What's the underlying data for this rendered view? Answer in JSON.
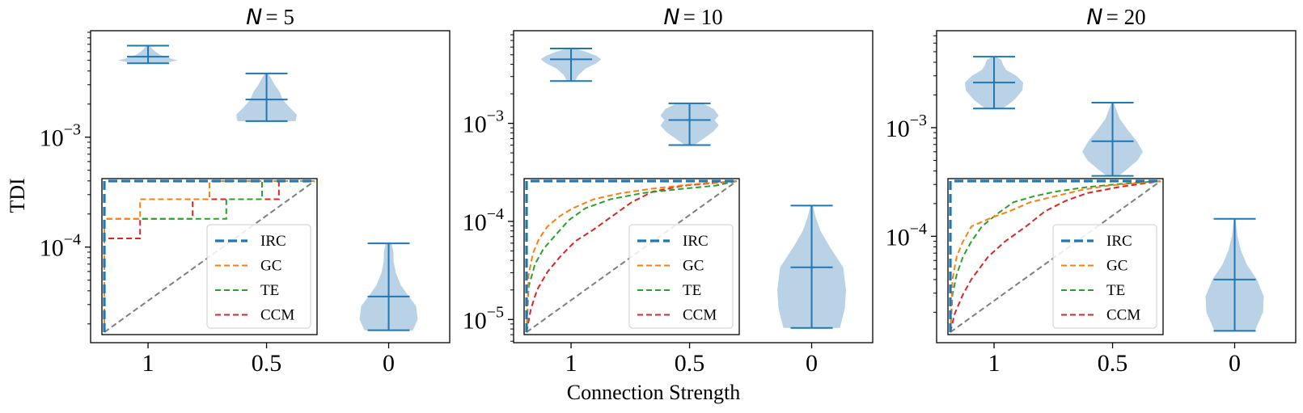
{
  "figure": {
    "xlabel": "Connection Strength",
    "ylabel": "TDI"
  },
  "chart_data": [
    {
      "type": "violin",
      "title_var": "N",
      "title_value": "= 5",
      "categories": [
        "1",
        "0.5",
        "0"
      ],
      "yscale": "log",
      "ylim": [
        1.35e-05,
        0.0093
      ],
      "y_ticks": [
        {
          "value": 0.001,
          "base": "10",
          "exp": "−3"
        },
        {
          "value": 0.0001,
          "base": "10",
          "exp": "−4"
        }
      ],
      "violins": [
        {
          "category": "1",
          "min": 0.0047,
          "max": 0.0068,
          "mean": 0.0054,
          "profile": [
            [
              0.0047,
              0.38
            ],
            [
              0.005,
              0.74
            ],
            [
              0.0052,
              0.56
            ],
            [
              0.0056,
              0.3
            ],
            [
              0.006,
              0.18
            ],
            [
              0.0064,
              0.1
            ],
            [
              0.0068,
              0.04
            ]
          ]
        },
        {
          "category": "0.5",
          "min": 0.0014,
          "max": 0.0038,
          "mean": 0.0022,
          "profile": [
            [
              0.0014,
              0.72
            ],
            [
              0.0016,
              0.75
            ],
            [
              0.0019,
              0.55
            ],
            [
              0.0022,
              0.4
            ],
            [
              0.0026,
              0.32
            ],
            [
              0.003,
              0.2
            ],
            [
              0.0034,
              0.12
            ],
            [
              0.0038,
              0.04
            ]
          ]
        },
        {
          "category": "0",
          "min": 1.75e-05,
          "max": 0.000108,
          "mean": 3.55e-05,
          "profile": [
            [
              1.75e-05,
              0.6
            ],
            [
              2.2e-05,
              0.72
            ],
            [
              2.9e-05,
              0.68
            ],
            [
              3.55e-05,
              0.5
            ],
            [
              4.5e-05,
              0.3
            ],
            [
              5.8e-05,
              0.18
            ],
            [
              7.5e-05,
              0.12
            ],
            [
              9e-05,
              0.12
            ],
            [
              0.000108,
              0.07
            ]
          ]
        }
      ],
      "inset": {
        "type": "roc",
        "legend_position": "lower-right",
        "series": [
          {
            "name": "IRC",
            "color": "#1f77b4",
            "style": "dashed-thick",
            "points": [
              [
                0,
                0
              ],
              [
                0,
                1
              ],
              [
                1,
                1
              ]
            ]
          },
          {
            "name": "GC",
            "color": "#ff7f0e",
            "style": "dashed",
            "points": [
              [
                0,
                0
              ],
              [
                0,
                0.75
              ],
              [
                0.17,
                0.75
              ],
              [
                0.17,
                0.88
              ],
              [
                0.5,
                0.88
              ],
              [
                0.5,
                1
              ],
              [
                1,
                1
              ]
            ]
          },
          {
            "name": "TE",
            "color": "#2ca02c",
            "style": "dashed",
            "points": [
              [
                0,
                0
              ],
              [
                0,
                0.75
              ],
              [
                0.58,
                0.75
              ],
              [
                0.58,
                0.88
              ],
              [
                0.75,
                0.88
              ],
              [
                0.75,
                1
              ],
              [
                1,
                1
              ]
            ]
          },
          {
            "name": "CCM",
            "color": "#d62728",
            "style": "dashed",
            "points": [
              [
                0,
                0
              ],
              [
                0,
                0.62
              ],
              [
                0.17,
                0.62
              ],
              [
                0.17,
                0.75
              ],
              [
                0.42,
                0.75
              ],
              [
                0.42,
                0.88
              ],
              [
                0.83,
                0.88
              ],
              [
                0.83,
                1
              ],
              [
                1,
                1
              ]
            ]
          },
          {
            "name": "",
            "color": "#7f7f7f",
            "style": "dashed-diagonal",
            "points": [
              [
                0,
                0
              ],
              [
                1,
                1
              ]
            ]
          }
        ]
      }
    },
    {
      "type": "violin",
      "title_var": "N",
      "title_value": "= 10",
      "categories": [
        "1",
        "0.5",
        "0"
      ],
      "yscale": "log",
      "ylim": [
        5.8e-06,
        0.0088
      ],
      "y_ticks": [
        {
          "value": 0.001,
          "base": "10",
          "exp": "−3"
        },
        {
          "value": 0.0001,
          "base": "10",
          "exp": "−4"
        },
        {
          "value": 1e-05,
          "base": "10",
          "exp": "−5"
        }
      ],
      "violins": [
        {
          "category": "1",
          "min": 0.0027,
          "max": 0.0058,
          "mean": 0.0045,
          "profile": [
            [
              0.0027,
              0.1
            ],
            [
              0.0031,
              0.18
            ],
            [
              0.0036,
              0.35
            ],
            [
              0.0041,
              0.62
            ],
            [
              0.0045,
              0.75
            ],
            [
              0.0049,
              0.62
            ],
            [
              0.0054,
              0.35
            ],
            [
              0.0058,
              0.1
            ]
          ]
        },
        {
          "category": "0.5",
          "min": 0.0006,
          "max": 0.0016,
          "mean": 0.00108,
          "profile": [
            [
              0.0006,
              0.12
            ],
            [
              0.0007,
              0.35
            ],
            [
              0.00082,
              0.58
            ],
            [
              0.00095,
              0.72
            ],
            [
              0.00108,
              0.62
            ],
            [
              0.0012,
              0.72
            ],
            [
              0.0014,
              0.6
            ],
            [
              0.0016,
              0.32
            ]
          ]
        },
        {
          "category": "0",
          "min": 8.2e-06,
          "max": 0.000145,
          "mean": 3.4e-05,
          "profile": [
            [
              8.2e-06,
              0.7
            ],
            [
              1.3e-05,
              0.82
            ],
            [
              2e-05,
              0.85
            ],
            [
              3.4e-05,
              0.78
            ],
            [
              5.5e-05,
              0.45
            ],
            [
              8e-05,
              0.22
            ],
            [
              0.00011,
              0.1
            ],
            [
              0.000145,
              0.03
            ]
          ]
        }
      ],
      "inset": {
        "type": "roc",
        "legend_position": "lower-right",
        "series": [
          {
            "name": "IRC",
            "color": "#1f77b4",
            "style": "dashed-thick",
            "points": [
              [
                0,
                0
              ],
              [
                0,
                1
              ],
              [
                1,
                1
              ]
            ]
          },
          {
            "name": "GC",
            "color": "#ff7f0e",
            "style": "dashed",
            "points": [
              [
                0,
                0
              ],
              [
                0.01,
                0.38
              ],
              [
                0.03,
                0.52
              ],
              [
                0.06,
                0.62
              ],
              [
                0.1,
                0.7
              ],
              [
                0.16,
                0.77
              ],
              [
                0.22,
                0.82
              ],
              [
                0.32,
                0.88
              ],
              [
                0.45,
                0.92
              ],
              [
                0.6,
                0.95
              ],
              [
                0.8,
                0.98
              ],
              [
                1,
                1
              ]
            ]
          },
          {
            "name": "TE",
            "color": "#2ca02c",
            "style": "dashed",
            "points": [
              [
                0,
                0
              ],
              [
                0.01,
                0.3
              ],
              [
                0.04,
                0.45
              ],
              [
                0.08,
                0.55
              ],
              [
                0.13,
                0.63
              ],
              [
                0.2,
                0.74
              ],
              [
                0.28,
                0.82
              ],
              [
                0.4,
                0.88
              ],
              [
                0.55,
                0.92
              ],
              [
                0.75,
                0.95
              ],
              [
                0.9,
                0.97
              ],
              [
                1,
                1
              ]
            ]
          },
          {
            "name": "CCM",
            "color": "#d62728",
            "style": "dashed",
            "points": [
              [
                0,
                0
              ],
              [
                0.02,
                0.15
              ],
              [
                0.05,
                0.28
              ],
              [
                0.1,
                0.4
              ],
              [
                0.16,
                0.5
              ],
              [
                0.23,
                0.6
              ],
              [
                0.32,
                0.68
              ],
              [
                0.4,
                0.76
              ],
              [
                0.5,
                0.86
              ],
              [
                0.6,
                0.93
              ],
              [
                0.75,
                0.97
              ],
              [
                1,
                1
              ]
            ]
          },
          {
            "name": "",
            "color": "#7f7f7f",
            "style": "dashed-diagonal",
            "points": [
              [
                0,
                0
              ],
              [
                1,
                1
              ]
            ]
          }
        ]
      }
    },
    {
      "type": "violin",
      "title_var": "N",
      "title_value": "= 20",
      "categories": [
        "1",
        "0.5",
        "0"
      ],
      "yscale": "log",
      "ylim": [
        1.05e-05,
        0.0078
      ],
      "y_ticks": [
        {
          "value": 0.001,
          "base": "10",
          "exp": "−3"
        },
        {
          "value": 0.0001,
          "base": "10",
          "exp": "−4"
        }
      ],
      "violins": [
        {
          "category": "1",
          "min": 0.0015,
          "max": 0.0045,
          "mean": 0.0026,
          "profile": [
            [
              0.0015,
              0.22
            ],
            [
              0.0018,
              0.5
            ],
            [
              0.0022,
              0.7
            ],
            [
              0.0026,
              0.72
            ],
            [
              0.003,
              0.55
            ],
            [
              0.0034,
              0.3
            ],
            [
              0.0038,
              0.22
            ],
            [
              0.0042,
              0.18
            ],
            [
              0.0045,
              0.04
            ]
          ]
        },
        {
          "category": "0.5",
          "min": 0.00036,
          "max": 0.0017,
          "mean": 0.00075,
          "profile": [
            [
              0.00036,
              0.15
            ],
            [
              0.00042,
              0.38
            ],
            [
              0.0005,
              0.62
            ],
            [
              0.0006,
              0.75
            ],
            [
              0.00075,
              0.6
            ],
            [
              0.00095,
              0.38
            ],
            [
              0.0012,
              0.18
            ],
            [
              0.0015,
              0.08
            ],
            [
              0.0017,
              0.03
            ]
          ]
        },
        {
          "category": "0",
          "min": 1.35e-05,
          "max": 0.000145,
          "mean": 4e-05,
          "profile": [
            [
              1.35e-05,
              0.5
            ],
            [
              2e-05,
              0.7
            ],
            [
              2.8e-05,
              0.72
            ],
            [
              4e-05,
              0.55
            ],
            [
              5.5e-05,
              0.3
            ],
            [
              7.5e-05,
              0.15
            ],
            [
              0.0001,
              0.07
            ],
            [
              0.000145,
              0.02
            ]
          ]
        }
      ],
      "inset": {
        "type": "roc",
        "legend_position": "lower-right",
        "series": [
          {
            "name": "IRC",
            "color": "#1f77b4",
            "style": "dashed-thick",
            "points": [
              [
                0,
                0
              ],
              [
                0,
                1
              ],
              [
                1,
                1
              ]
            ]
          },
          {
            "name": "GC",
            "color": "#ff7f0e",
            "style": "dashed",
            "points": [
              [
                0,
                0
              ],
              [
                0.01,
                0.35
              ],
              [
                0.03,
                0.5
              ],
              [
                0.06,
                0.6
              ],
              [
                0.1,
                0.7
              ],
              [
                0.15,
                0.73
              ],
              [
                0.2,
                0.76
              ],
              [
                0.28,
                0.8
              ],
              [
                0.38,
                0.86
              ],
              [
                0.5,
                0.9
              ],
              [
                0.62,
                0.94
              ],
              [
                0.75,
                0.97
              ],
              [
                1,
                1
              ]
            ]
          },
          {
            "name": "TE",
            "color": "#2ca02c",
            "style": "dashed",
            "points": [
              [
                0,
                0
              ],
              [
                0.01,
                0.25
              ],
              [
                0.03,
                0.38
              ],
              [
                0.06,
                0.5
              ],
              [
                0.1,
                0.6
              ],
              [
                0.15,
                0.7
              ],
              [
                0.22,
                0.78
              ],
              [
                0.3,
                0.86
              ],
              [
                0.4,
                0.9
              ],
              [
                0.5,
                0.93
              ],
              [
                0.65,
                0.96
              ],
              [
                0.8,
                0.98
              ],
              [
                1,
                1
              ]
            ]
          },
          {
            "name": "CCM",
            "color": "#d62728",
            "style": "dashed",
            "points": [
              [
                0,
                0
              ],
              [
                0.02,
                0.12
              ],
              [
                0.06,
                0.25
              ],
              [
                0.1,
                0.35
              ],
              [
                0.18,
                0.5
              ],
              [
                0.26,
                0.6
              ],
              [
                0.36,
                0.7
              ],
              [
                0.45,
                0.8
              ],
              [
                0.55,
                0.87
              ],
              [
                0.65,
                0.92
              ],
              [
                0.8,
                0.96
              ],
              [
                1,
                1
              ]
            ]
          },
          {
            "name": "",
            "color": "#7f7f7f",
            "style": "dashed-diagonal",
            "points": [
              [
                0,
                0
              ],
              [
                1,
                1
              ]
            ]
          }
        ]
      }
    }
  ]
}
